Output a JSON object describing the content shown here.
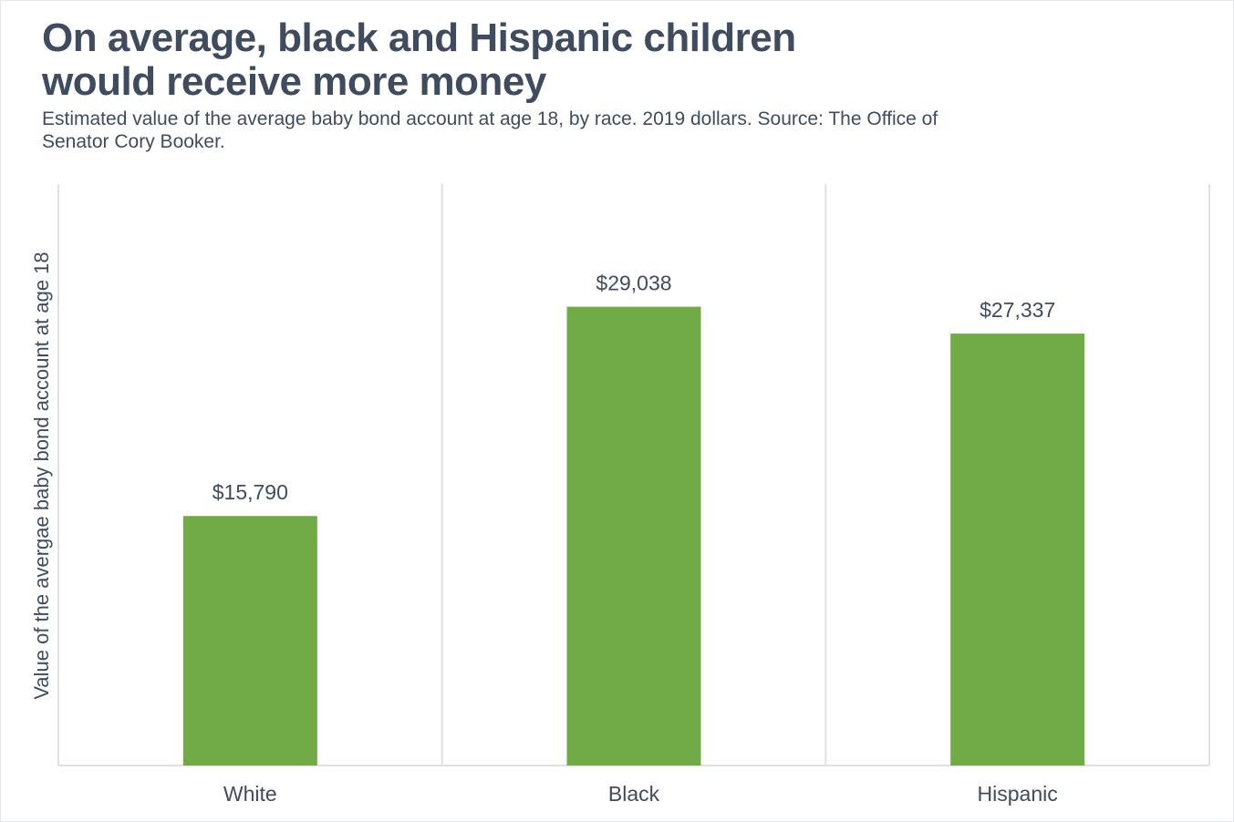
{
  "chart_data": {
    "type": "bar",
    "title": "On average, black and Hispanic children would receive more money",
    "subtitle": "Estimated value of the average baby bond account at age 18, by race. 2019 dollars. Source: The Office of Senator Cory Booker.",
    "xlabel": "",
    "ylabel": "Value of the avergae baby bond account at age 18",
    "categories": [
      "White",
      "Black",
      "Hispanic"
    ],
    "values": [
      15790,
      29038,
      27337
    ],
    "value_labels": [
      "$15,790",
      "$29,038",
      "$27,337"
    ],
    "ylim": [
      0,
      36800
    ],
    "grid": "vertical category separators",
    "colors": {
      "bar": "#70ab46",
      "text": "#3f4c5f",
      "grid": "#dde1e6"
    }
  }
}
